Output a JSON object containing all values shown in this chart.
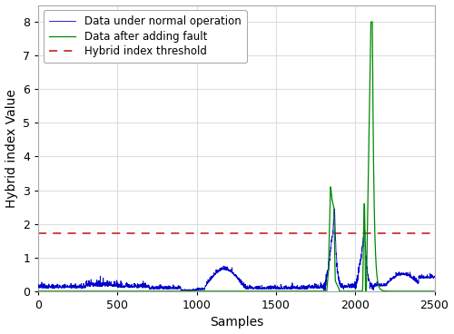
{
  "xlabel": "Samples",
  "ylabel": "Hybrid index Value",
  "xlim": [
    0,
    2500
  ],
  "ylim": [
    0,
    8.5
  ],
  "yticks": [
    0,
    1,
    2,
    3,
    4,
    5,
    6,
    7,
    8
  ],
  "xticks": [
    0,
    500,
    1000,
    1500,
    2000,
    2500
  ],
  "threshold": 1.72,
  "threshold_color": "#cc3333",
  "blue_color": "#0000cc",
  "green_color": "#008800",
  "legend_labels": [
    "Data under normal operation",
    "Data after adding fault",
    "Hybrid index threshold"
  ],
  "figsize": [
    5.0,
    3.68
  ],
  "dpi": 100,
  "background_color": "#ffffff",
  "grid_color": "#dddddd"
}
